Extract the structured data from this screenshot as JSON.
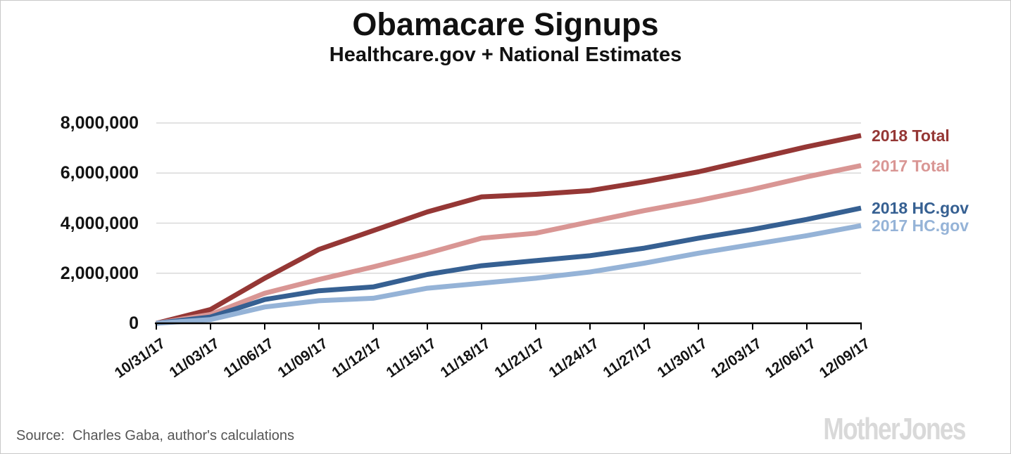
{
  "page": {
    "source_label": "Source:",
    "source_text": "Charles Gaba, author's calculations",
    "brand": "MotherJones"
  },
  "colors": {
    "total_2018": "#953735",
    "total_2017": "#D99694",
    "hcgov_2018": "#366092",
    "hcgov_2017": "#95B3D7",
    "gridline": "#D9D9D9",
    "axis": "#000000",
    "source_text": "#555555",
    "brand_logo": "#D9D9D9"
  },
  "chart_data": {
    "type": "line",
    "title": "Obamacare Signups",
    "subtitle": "Healthcare.gov + National Estimates",
    "xlabel": "",
    "ylabel": "",
    "x": [
      "10/31/17",
      "11/03/17",
      "11/06/17",
      "11/09/17",
      "11/12/17",
      "11/15/17",
      "11/18/17",
      "11/21/17",
      "11/24/17",
      "11/27/17",
      "11/30/17",
      "12/03/17",
      "12/06/17",
      "12/09/17"
    ],
    "series": [
      {
        "name": "2018 Total",
        "color": "#953735",
        "values": [
          0,
          550000,
          1800000,
          2950000,
          3700000,
          4450000,
          5050000,
          5150000,
          5300000,
          5650000,
          6050000,
          6550000,
          7050000,
          7500000
        ]
      },
      {
        "name": "2017 Total",
        "color": "#D99694",
        "values": [
          0,
          350000,
          1200000,
          1750000,
          2250000,
          2800000,
          3400000,
          3600000,
          4050000,
          4500000,
          4900000,
          5350000,
          5850000,
          6300000
        ]
      },
      {
        "name": "2018 HC.gov",
        "color": "#366092",
        "values": [
          0,
          250000,
          950000,
          1300000,
          1450000,
          1950000,
          2300000,
          2500000,
          2700000,
          3000000,
          3400000,
          3750000,
          4150000,
          4600000
        ]
      },
      {
        "name": "2017 HC.gov",
        "color": "#95B3D7",
        "values": [
          0,
          150000,
          650000,
          900000,
          1000000,
          1400000,
          1600000,
          1800000,
          2050000,
          2400000,
          2800000,
          3150000,
          3500000,
          3900000
        ]
      }
    ],
    "ylim": [
      0,
      8000000
    ],
    "ytick_interval": 2000000,
    "ytick_labels": [
      "0",
      "2,000,000",
      "4,000,000",
      "6,000,000",
      "8,000,000"
    ],
    "grid": true,
    "legend_position": "right-of-line-ends"
  }
}
